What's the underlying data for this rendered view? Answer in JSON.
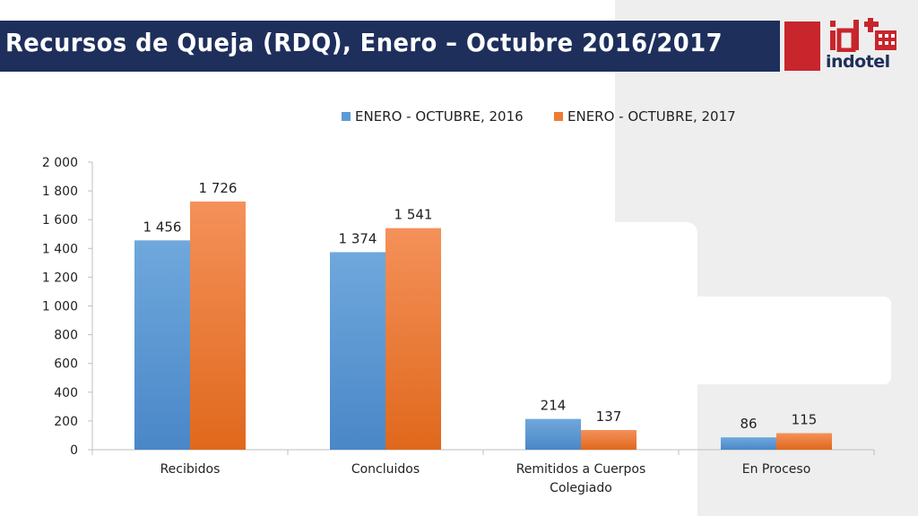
{
  "header": {
    "title": "Recursos de Queja (RDQ), Enero – Octubre 2016/2017",
    "logo_text": "indotel"
  },
  "colors": {
    "title_bar": "#1e2f5c",
    "logo_red": "#c8252c",
    "series_2016": "#5b9bd5",
    "series_2017": "#ed7d31"
  },
  "chart_data": {
    "type": "bar",
    "categories": [
      "Recibidos",
      "Concluidos",
      "Remitidos a Cuerpos Colegiado",
      "En Proceso"
    ],
    "series": [
      {
        "name": "ENERO - OCTUBRE, 2016",
        "values": [
          1456,
          1374,
          214,
          86
        ]
      },
      {
        "name": "ENERO - OCTUBRE, 2017",
        "values": [
          1726,
          1541,
          137,
          115
        ]
      }
    ],
    "ylim": [
      0,
      2000
    ],
    "yticks": [
      0,
      200,
      400,
      600,
      800,
      1000,
      1200,
      1400,
      1600,
      1800,
      2000
    ],
    "legend": "top",
    "grid": false,
    "xlabel": "",
    "ylabel": ""
  }
}
